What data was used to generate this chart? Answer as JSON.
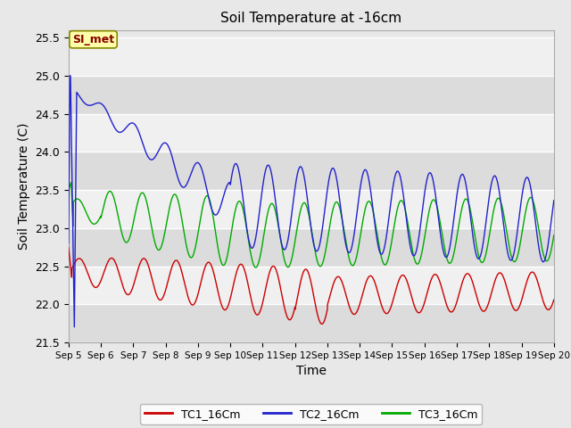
{
  "title": "Soil Temperature at -16cm",
  "xlabel": "Time",
  "ylabel": "Soil Temperature (C)",
  "ylim": [
    21.5,
    25.6
  ],
  "xlim_days": [
    0,
    15
  ],
  "fig_bg_color": "#e8e8e8",
  "plot_bg_color": "#e8e8e8",
  "band_colors": [
    "#dcdcdc",
    "#f0f0f0"
  ],
  "grid_color": "#ffffff",
  "colors": {
    "TC1": "#cc0000",
    "TC2": "#2222cc",
    "TC3": "#00aa00"
  },
  "legend_labels": [
    "TC1_16Cm",
    "TC2_16Cm",
    "TC3_16Cm"
  ],
  "annotation_text": "SI_met",
  "annotation_color": "#880000",
  "annotation_bg": "#ffffaa",
  "annotation_border": "#888800",
  "xtick_labels": [
    "Sep 5",
    "Sep 6",
    "Sep 7",
    "Sep 8",
    "Sep 9",
    "Sep 10",
    "Sep 11",
    "Sep 12",
    "Sep 13",
    "Sep 14",
    "Sep 15",
    "Sep 16",
    "Sep 17",
    "Sep 18",
    "Sep 19",
    "Sep 20"
  ],
  "ytick_values": [
    21.5,
    22.0,
    22.5,
    23.0,
    23.5,
    24.0,
    24.5,
    25.0,
    25.5
  ]
}
